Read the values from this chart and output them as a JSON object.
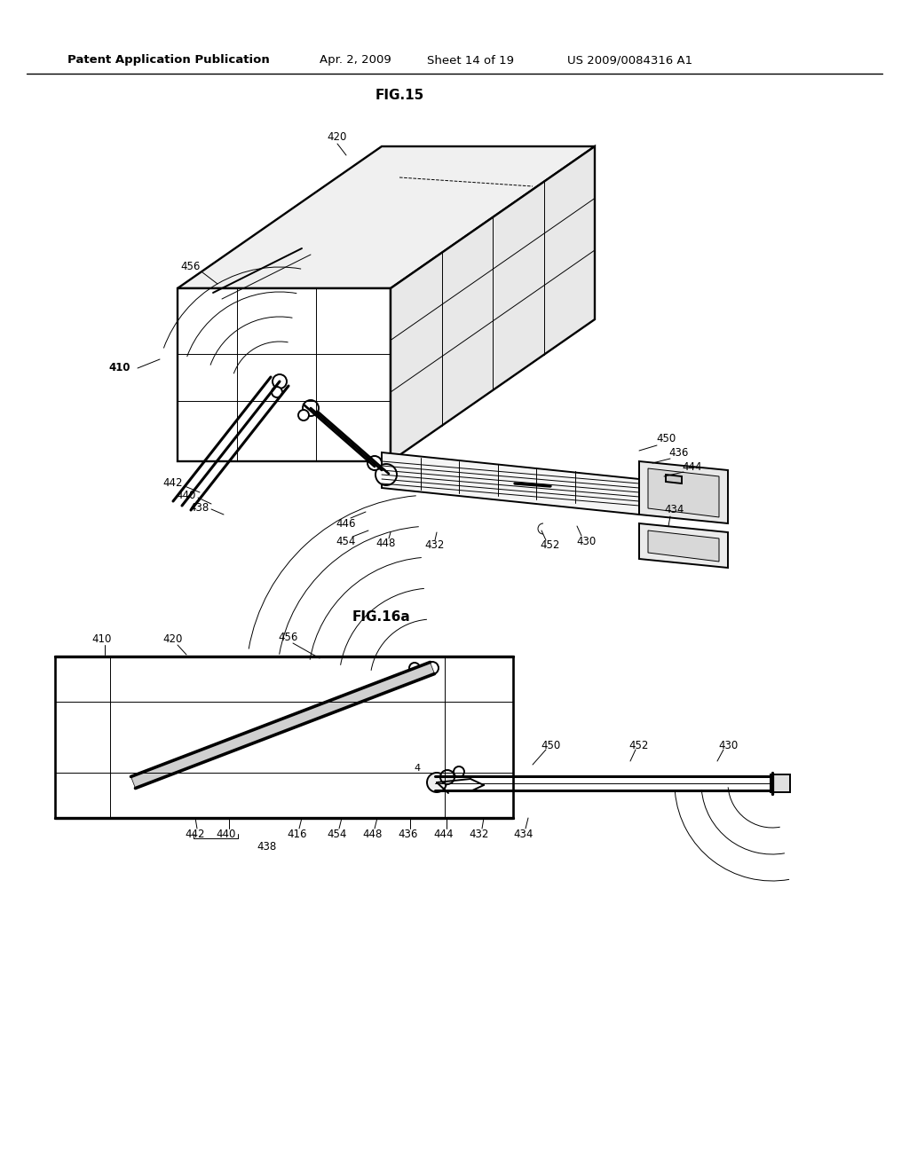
{
  "background_color": "#ffffff",
  "header_text": "Patent Application Publication",
  "header_date": "Apr. 2, 2009",
  "header_sheet": "Sheet 14 of 19",
  "header_patent": "US 2009/0084316 A1",
  "fig15_label": "FIG.15",
  "fig16a_label": "FIG.16a",
  "font_color": "#000000",
  "line_color": "#000000",
  "lw": 1.4,
  "tlw": 0.7,
  "thklw": 2.2
}
